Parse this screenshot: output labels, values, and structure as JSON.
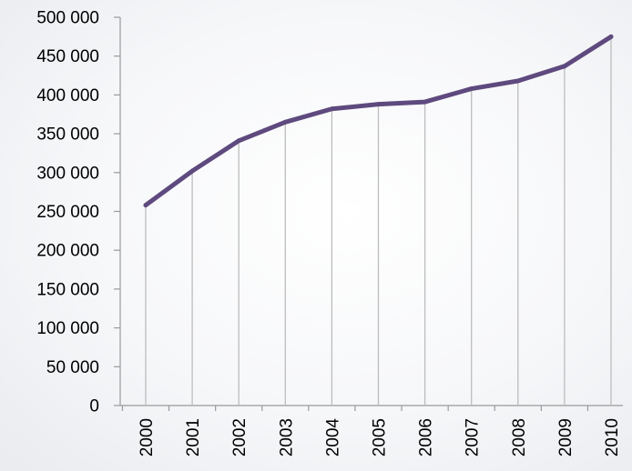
{
  "chart_data": {
    "type": "line",
    "title": "",
    "xlabel": "",
    "ylabel": "",
    "categories": [
      "2000",
      "2001",
      "2002",
      "2003",
      "2004",
      "2005",
      "2006",
      "2007",
      "2008",
      "2009",
      "2010"
    ],
    "series": [
      {
        "values": [
          258000,
          302000,
          341000,
          365000,
          382000,
          388000,
          391000,
          408000,
          418000,
          437000,
          475000
        ],
        "color": "#5e4a7e"
      }
    ],
    "ylim": [
      0,
      500000
    ],
    "yticks": [
      0,
      50000,
      100000,
      150000,
      200000,
      250000,
      300000,
      350000,
      400000,
      450000,
      500000
    ],
    "ytick_labels": [
      "0",
      "50 000",
      "100 000",
      "150 000",
      "200 000",
      "250 000",
      "300 000",
      "350 000",
      "400 000",
      "450 000",
      "500 000"
    ],
    "grid": "vertical drop lines at each category",
    "legend": "none",
    "colors": {
      "axis": "#9a9a9a",
      "grid": "#bdbdbd",
      "line": "#5e4a7e"
    }
  }
}
